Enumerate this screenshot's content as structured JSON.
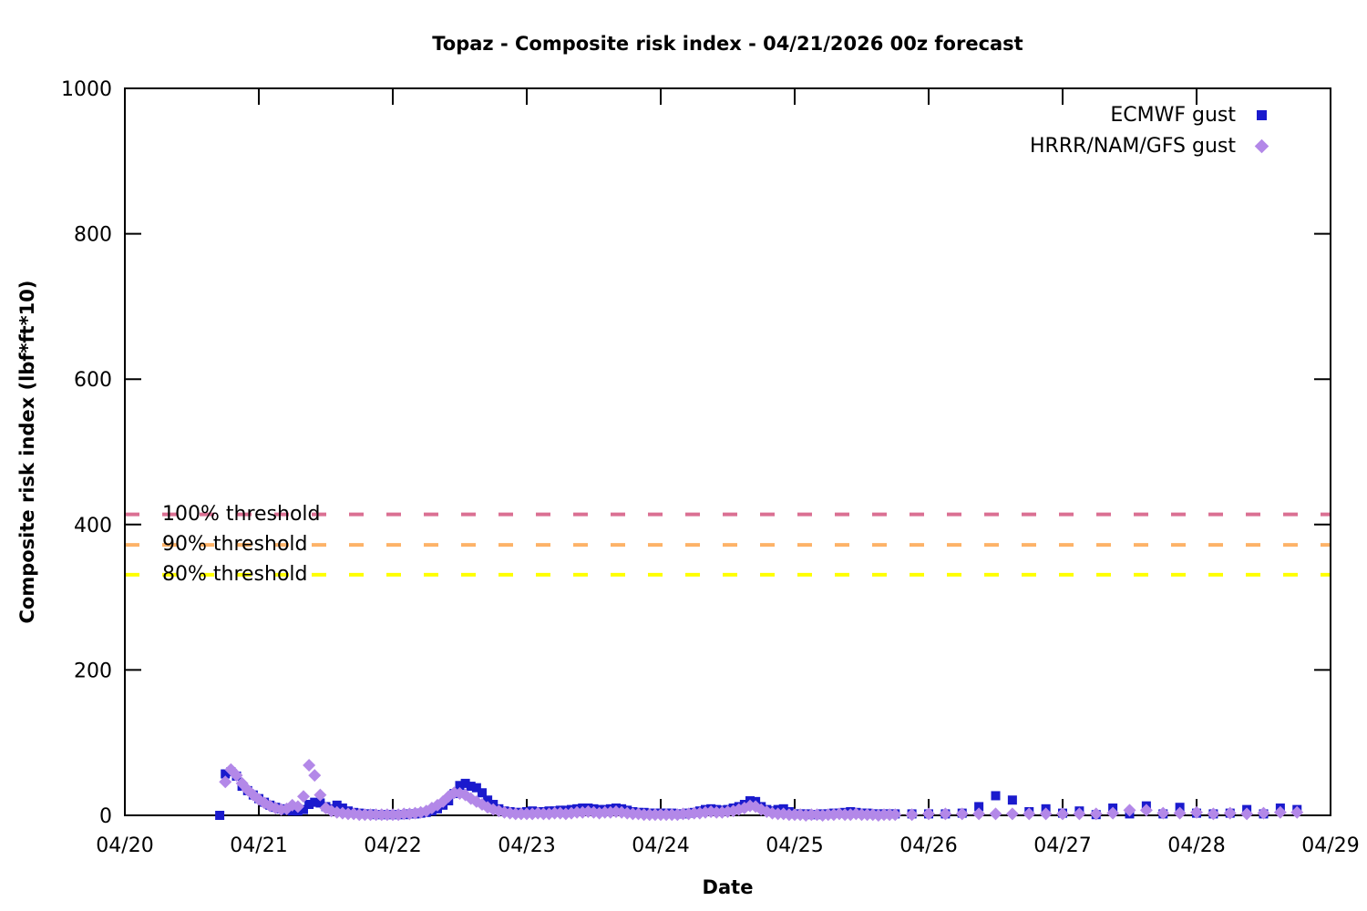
{
  "title": "Topaz - Composite risk index - 04/21/2026 00z forecast",
  "chart_data": {
    "type": "scatter",
    "xlabel": "Date",
    "ylabel": "Composite risk index (lbf*ft*10)",
    "time_units": "hours since 04/20 00z",
    "x_range_hours": [
      0,
      216
    ],
    "x_tick_labels": [
      "04/20",
      "04/21",
      "04/22",
      "04/23",
      "04/24",
      "04/25",
      "04/26",
      "04/27",
      "04/28",
      "04/29"
    ],
    "ylim": [
      0,
      1000
    ],
    "y_ticks": [
      0,
      200,
      400,
      600,
      800,
      1000
    ],
    "grid": false,
    "legend_position": "top-right",
    "thresholds": [
      {
        "label": "100% threshold",
        "value": 414,
        "color": "#db7093"
      },
      {
        "label": "90% threshold",
        "value": 372,
        "color": "#fdb268"
      },
      {
        "label": "80% threshold",
        "value": 331,
        "color": "#ffff00"
      }
    ],
    "series": [
      {
        "name": "ECMWF gust",
        "marker": "square",
        "color": "#1a1acd",
        "points": [
          [
            17,
            0
          ],
          [
            18,
            57
          ],
          [
            19,
            60
          ],
          [
            20,
            54
          ],
          [
            21,
            40
          ],
          [
            22,
            34
          ],
          [
            23,
            28
          ],
          [
            24,
            23
          ],
          [
            25,
            18
          ],
          [
            26,
            14
          ],
          [
            27,
            11
          ],
          [
            28,
            9
          ],
          [
            29,
            7
          ],
          [
            30,
            6
          ],
          [
            31,
            6
          ],
          [
            32,
            8
          ],
          [
            33,
            15
          ],
          [
            34,
            18
          ],
          [
            35,
            17
          ],
          [
            36,
            12
          ],
          [
            37,
            9
          ],
          [
            38,
            14
          ],
          [
            39,
            10
          ],
          [
            40,
            6
          ],
          [
            41,
            4
          ],
          [
            42,
            3
          ],
          [
            43,
            2
          ],
          [
            44,
            2
          ],
          [
            45,
            1
          ],
          [
            46,
            1
          ],
          [
            47,
            1
          ],
          [
            48,
            1
          ],
          [
            49,
            1
          ],
          [
            50,
            1
          ],
          [
            51,
            2
          ],
          [
            52,
            2
          ],
          [
            53,
            3
          ],
          [
            54,
            4
          ],
          [
            55,
            6
          ],
          [
            56,
            9
          ],
          [
            57,
            14
          ],
          [
            58,
            20
          ],
          [
            59,
            30
          ],
          [
            60,
            41
          ],
          [
            61,
            44
          ],
          [
            62,
            40
          ],
          [
            63,
            38
          ],
          [
            64,
            31
          ],
          [
            65,
            21
          ],
          [
            66,
            15
          ],
          [
            67,
            9
          ],
          [
            68,
            6
          ],
          [
            69,
            5
          ],
          [
            70,
            4
          ],
          [
            71,
            4
          ],
          [
            72,
            5
          ],
          [
            73,
            6
          ],
          [
            74,
            5
          ],
          [
            75,
            5
          ],
          [
            76,
            6
          ],
          [
            77,
            6
          ],
          [
            78,
            7
          ],
          [
            79,
            7
          ],
          [
            80,
            8
          ],
          [
            81,
            9
          ],
          [
            82,
            10
          ],
          [
            83,
            10
          ],
          [
            84,
            9
          ],
          [
            85,
            8
          ],
          [
            86,
            8
          ],
          [
            87,
            9
          ],
          [
            88,
            10
          ],
          [
            89,
            9
          ],
          [
            90,
            7
          ],
          [
            91,
            5
          ],
          [
            92,
            4
          ],
          [
            93,
            4
          ],
          [
            94,
            3
          ],
          [
            95,
            3
          ],
          [
            96,
            3
          ],
          [
            97,
            3
          ],
          [
            98,
            3
          ],
          [
            99,
            2
          ],
          [
            100,
            2
          ],
          [
            101,
            3
          ],
          [
            102,
            4
          ],
          [
            103,
            6
          ],
          [
            104,
            8
          ],
          [
            105,
            9
          ],
          [
            106,
            8
          ],
          [
            107,
            7
          ],
          [
            108,
            8
          ],
          [
            109,
            10
          ],
          [
            110,
            12
          ],
          [
            111,
            15
          ],
          [
            112,
            20
          ],
          [
            113,
            19
          ],
          [
            114,
            12
          ],
          [
            115,
            8
          ],
          [
            116,
            6
          ],
          [
            117,
            8
          ],
          [
            118,
            9
          ],
          [
            119,
            5
          ],
          [
            120,
            2
          ],
          [
            121,
            2
          ],
          [
            122,
            2
          ],
          [
            123,
            1
          ],
          [
            124,
            1
          ],
          [
            125,
            2
          ],
          [
            126,
            2
          ],
          [
            127,
            3
          ],
          [
            128,
            3
          ],
          [
            129,
            4
          ],
          [
            130,
            5
          ],
          [
            131,
            4
          ],
          [
            132,
            3
          ],
          [
            133,
            3
          ],
          [
            134,
            2
          ],
          [
            135,
            2
          ],
          [
            136,
            2
          ],
          [
            137,
            2
          ],
          [
            138,
            2
          ],
          [
            141,
            2
          ],
          [
            144,
            2
          ],
          [
            147,
            2
          ],
          [
            150,
            3
          ],
          [
            153,
            12
          ],
          [
            156,
            27
          ],
          [
            159,
            21
          ],
          [
            162,
            5
          ],
          [
            165,
            9
          ],
          [
            168,
            3
          ],
          [
            171,
            6
          ],
          [
            174,
            1
          ],
          [
            177,
            10
          ],
          [
            180,
            2
          ],
          [
            183,
            13
          ],
          [
            186,
            2
          ],
          [
            189,
            11
          ],
          [
            192,
            3
          ],
          [
            195,
            2
          ],
          [
            198,
            3
          ],
          [
            201,
            8
          ],
          [
            204,
            2
          ],
          [
            207,
            10
          ],
          [
            210,
            8
          ]
        ]
      },
      {
        "name": "HRRR/NAM/GFS gust",
        "marker": "diamond",
        "color": "#b388e8",
        "points": [
          [
            18,
            46
          ],
          [
            19,
            63
          ],
          [
            20,
            55
          ],
          [
            21,
            44
          ],
          [
            22,
            35
          ],
          [
            23,
            28
          ],
          [
            24,
            22
          ],
          [
            25,
            17
          ],
          [
            26,
            13
          ],
          [
            27,
            10
          ],
          [
            28,
            8
          ],
          [
            29,
            9
          ],
          [
            30,
            14
          ],
          [
            31,
            12
          ],
          [
            32,
            26
          ],
          [
            33,
            69
          ],
          [
            34,
            55
          ],
          [
            35,
            28
          ],
          [
            36,
            10
          ],
          [
            37,
            6
          ],
          [
            38,
            4
          ],
          [
            39,
            3
          ],
          [
            40,
            2
          ],
          [
            41,
            2
          ],
          [
            42,
            1
          ],
          [
            43,
            1
          ],
          [
            44,
            1
          ],
          [
            45,
            1
          ],
          [
            46,
            1
          ],
          [
            47,
            1
          ],
          [
            48,
            1
          ],
          [
            49,
            1
          ],
          [
            50,
            2
          ],
          [
            51,
            2
          ],
          [
            52,
            3
          ],
          [
            53,
            4
          ],
          [
            54,
            6
          ],
          [
            55,
            10
          ],
          [
            56,
            14
          ],
          [
            57,
            19
          ],
          [
            58,
            26
          ],
          [
            59,
            31
          ],
          [
            60,
            30
          ],
          [
            61,
            28
          ],
          [
            62,
            23
          ],
          [
            63,
            19
          ],
          [
            64,
            15
          ],
          [
            65,
            11
          ],
          [
            66,
            8
          ],
          [
            67,
            6
          ],
          [
            68,
            4
          ],
          [
            69,
            3
          ],
          [
            70,
            2
          ],
          [
            71,
            2
          ],
          [
            72,
            2
          ],
          [
            73,
            2
          ],
          [
            74,
            3
          ],
          [
            75,
            2
          ],
          [
            76,
            2
          ],
          [
            77,
            3
          ],
          [
            78,
            3
          ],
          [
            79,
            2
          ],
          [
            80,
            3
          ],
          [
            81,
            4
          ],
          [
            82,
            4
          ],
          [
            83,
            5
          ],
          [
            84,
            4
          ],
          [
            85,
            3
          ],
          [
            86,
            4
          ],
          [
            87,
            4
          ],
          [
            88,
            5
          ],
          [
            89,
            4
          ],
          [
            90,
            3
          ],
          [
            91,
            2
          ],
          [
            92,
            2
          ],
          [
            93,
            1
          ],
          [
            94,
            1
          ],
          [
            95,
            1
          ],
          [
            96,
            1
          ],
          [
            97,
            1
          ],
          [
            98,
            1
          ],
          [
            99,
            1
          ],
          [
            100,
            2
          ],
          [
            101,
            2
          ],
          [
            102,
            3
          ],
          [
            103,
            3
          ],
          [
            104,
            4
          ],
          [
            105,
            5
          ],
          [
            106,
            4
          ],
          [
            107,
            4
          ],
          [
            108,
            5
          ],
          [
            109,
            6
          ],
          [
            110,
            8
          ],
          [
            111,
            10
          ],
          [
            112,
            13
          ],
          [
            113,
            12
          ],
          [
            114,
            8
          ],
          [
            115,
            5
          ],
          [
            116,
            3
          ],
          [
            117,
            2
          ],
          [
            118,
            2
          ],
          [
            119,
            1
          ],
          [
            120,
            1
          ],
          [
            121,
            1
          ],
          [
            122,
            0
          ],
          [
            123,
            1
          ],
          [
            124,
            1
          ],
          [
            125,
            0
          ],
          [
            126,
            1
          ],
          [
            127,
            1
          ],
          [
            128,
            2
          ],
          [
            129,
            1
          ],
          [
            130,
            1
          ],
          [
            131,
            2
          ],
          [
            132,
            1
          ],
          [
            133,
            1
          ],
          [
            134,
            1
          ],
          [
            135,
            0
          ],
          [
            136,
            1
          ],
          [
            137,
            1
          ],
          [
            138,
            1
          ],
          [
            141,
            1
          ],
          [
            144,
            2
          ],
          [
            147,
            2
          ],
          [
            150,
            2
          ],
          [
            153,
            2
          ],
          [
            156,
            2
          ],
          [
            159,
            2
          ],
          [
            162,
            2
          ],
          [
            165,
            2
          ],
          [
            168,
            2
          ],
          [
            171,
            2
          ],
          [
            174,
            2
          ],
          [
            177,
            3
          ],
          [
            180,
            7
          ],
          [
            183,
            7
          ],
          [
            186,
            3
          ],
          [
            189,
            3
          ],
          [
            192,
            4
          ],
          [
            195,
            2
          ],
          [
            198,
            3
          ],
          [
            201,
            2
          ],
          [
            204,
            3
          ],
          [
            207,
            4
          ],
          [
            210,
            4
          ]
        ]
      }
    ]
  }
}
